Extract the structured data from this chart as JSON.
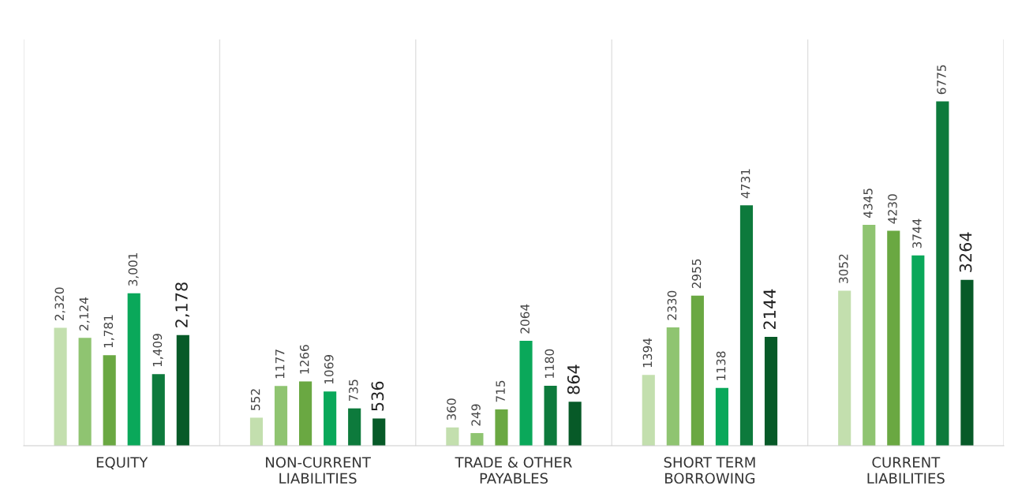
{
  "chart_data": {
    "type": "bar",
    "categories": [
      "EQUITY",
      "NON-CURRENT\nLIABILITIES",
      "TRADE & OTHER\nPAYABLES",
      "SHORT TERM\nBORROWING",
      "CURRENT\nLIABILITIES"
    ],
    "series": [
      {
        "color": "#c3dfae",
        "values": [
          2320,
          552,
          360,
          1394,
          3052
        ],
        "value_labels": [
          "2,320",
          "552",
          "360",
          "1394",
          "3052"
        ]
      },
      {
        "color": "#8fc471",
        "values": [
          2124,
          1177,
          249,
          2330,
          4345
        ],
        "value_labels": [
          "2,124",
          "1177",
          "249",
          "2330",
          "4345"
        ]
      },
      {
        "color": "#6aa842",
        "values": [
          1781,
          1266,
          715,
          2955,
          4230
        ],
        "value_labels": [
          "1,781",
          "1266",
          "715",
          "2955",
          "4230"
        ]
      },
      {
        "color": "#0aa85a",
        "values": [
          3001,
          1069,
          2064,
          1138,
          3744
        ],
        "value_labels": [
          "3,001",
          "1069",
          "2064",
          "1138",
          "3744"
        ]
      },
      {
        "color": "#0d7a3c",
        "values": [
          1409,
          735,
          1180,
          4731,
          6775
        ],
        "value_labels": [
          "1,409",
          "735",
          "1180",
          "4731",
          "6775"
        ]
      },
      {
        "color": "#075a28",
        "values": [
          2178,
          536,
          864,
          2144,
          3264
        ],
        "value_labels": [
          "2,178",
          "536",
          "864",
          "2144",
          "3264"
        ]
      }
    ],
    "grid": false
  }
}
